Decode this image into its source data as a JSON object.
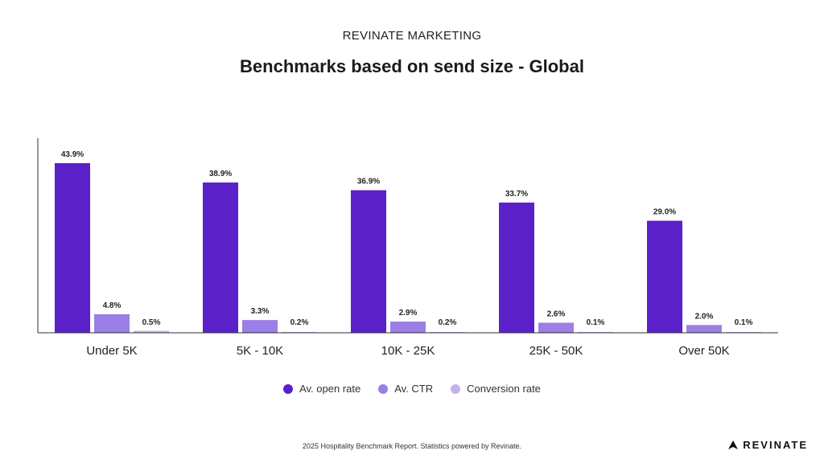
{
  "header": {
    "kicker": "REVINATE MARKETING",
    "title": "Benchmarks based on send size - Global"
  },
  "chart_data": {
    "type": "bar",
    "categories": [
      "Under 5K",
      "5K - 10K",
      "10K - 25K",
      "25K - 50K",
      "Over 50K"
    ],
    "series": [
      {
        "name": "Av. open rate",
        "color": "#5b21c9",
        "values": [
          43.9,
          38.9,
          36.9,
          33.7,
          29.0
        ]
      },
      {
        "name": "Av. CTR",
        "color": "#9b7fe6",
        "values": [
          4.8,
          3.3,
          2.9,
          2.6,
          2.0
        ]
      },
      {
        "name": "Conversion rate",
        "color": "#c3b2ef",
        "values": [
          0.5,
          0.2,
          0.2,
          0.1,
          0.1
        ]
      }
    ],
    "value_suffix": "%",
    "ylim": [
      0,
      50
    ],
    "grid": false,
    "legend_position": "bottom"
  },
  "footer": {
    "note": "2025 Hospitality Benchmark Report. Statistics powered by Revinate.",
    "brand": "REVINATE"
  }
}
